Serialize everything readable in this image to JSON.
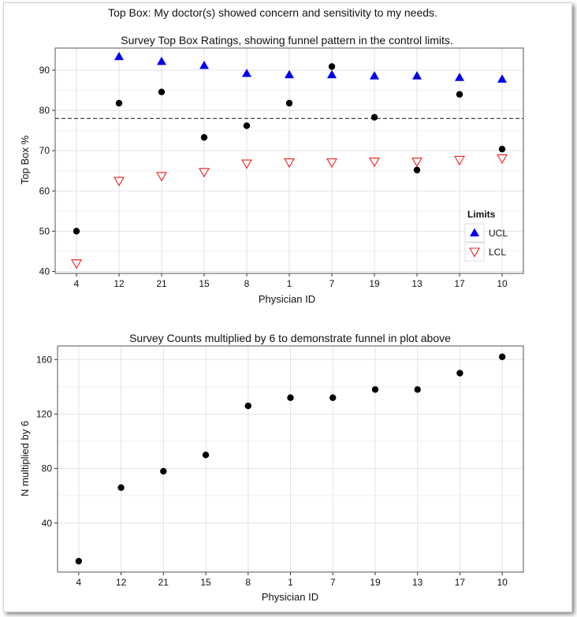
{
  "main_title": "Top Box: My doctor(s) showed concern and sensitivity to my needs.",
  "chart_data": [
    {
      "type": "scatter",
      "title": "Survey Top Box Ratings, showing funnel pattern in the control limits.",
      "xlabel": "Physician ID",
      "ylabel": "Top Box %",
      "categories": [
        "4",
        "12",
        "21",
        "15",
        "8",
        "1",
        "7",
        "19",
        "13",
        "17",
        "10"
      ],
      "ylim": [
        39.5,
        95.5
      ],
      "yticks": [
        40,
        50,
        60,
        70,
        80,
        90
      ],
      "grid": true,
      "reference_line": 78,
      "series": [
        {
          "values": [
            50,
            81.8,
            84.6,
            73.3,
            76.2,
            81.8,
            90.9,
            78.3,
            65.2,
            84,
            70.4
          ],
          "marker": "circle",
          "color": "#000000"
        },
        {
          "name": "UCL",
          "values": [
            null,
            93.4,
            92.2,
            91.2,
            89.2,
            88.9,
            88.9,
            88.6,
            88.6,
            88.2,
            87.8
          ],
          "marker": "triangle-up",
          "color": "#0000ee"
        },
        {
          "name": "LCL",
          "values": [
            42,
            62.5,
            63.7,
            64.7,
            66.8,
            67.1,
            67.1,
            67.3,
            67.3,
            67.7,
            68.1
          ],
          "marker": "triangle-down",
          "color": "#ee2222"
        }
      ],
      "legend": {
        "title": "Limits",
        "position": "bottom-right",
        "entries": [
          "UCL",
          "LCL"
        ]
      }
    },
    {
      "type": "scatter",
      "title": "Survey Counts multiplied by 6 to demonstrate funnel in plot above",
      "xlabel": "Physician ID",
      "ylabel": "N multiplied by 6",
      "categories": [
        "4",
        "12",
        "21",
        "15",
        "8",
        "1",
        "7",
        "19",
        "13",
        "17",
        "10"
      ],
      "ylim": [
        4,
        170
      ],
      "yticks": [
        40,
        80,
        120,
        160
      ],
      "grid": true,
      "series": [
        {
          "values": [
            12,
            66,
            78,
            90,
            126,
            132,
            132,
            138,
            138,
            150,
            162
          ],
          "marker": "circle",
          "color": "#000000"
        }
      ]
    }
  ]
}
